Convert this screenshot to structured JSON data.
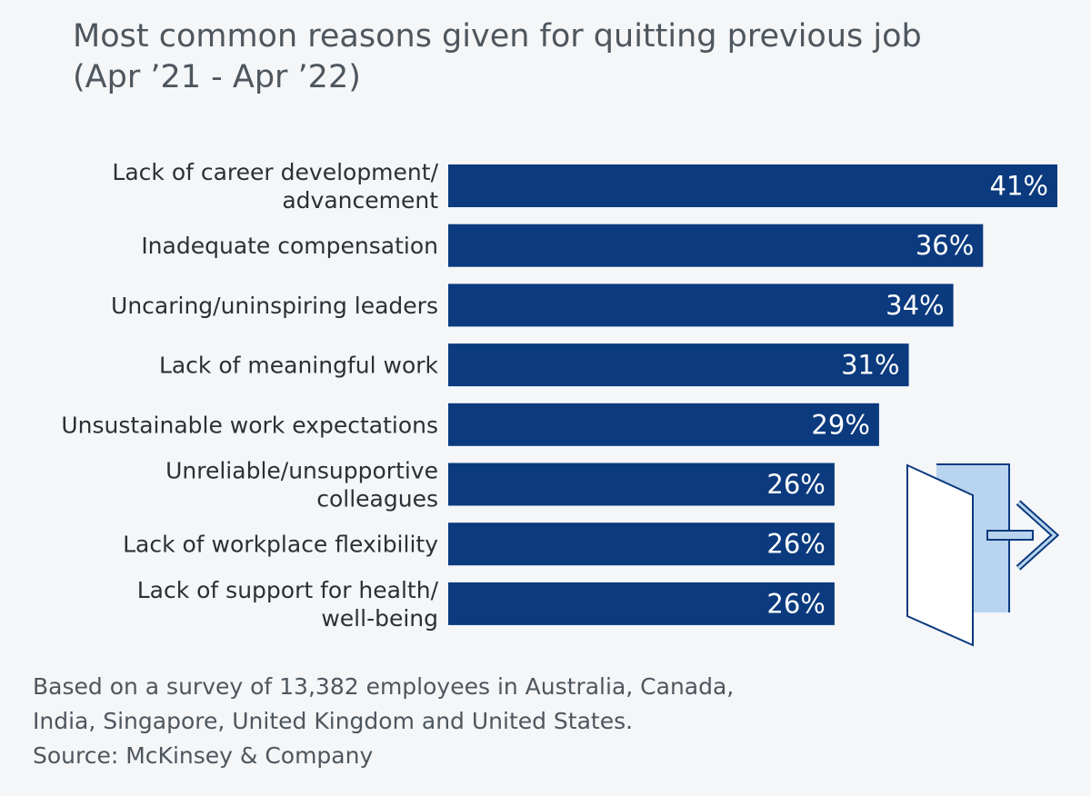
{
  "title_lines": [
    "Most common reasons given for quitting previous job",
    "(Apr ’21 - Apr ’22)"
  ],
  "chart_data": {
    "type": "bar",
    "orientation": "horizontal",
    "categories": [
      [
        "Lack of career development/",
        "advancement"
      ],
      [
        "Inadequate compensation"
      ],
      [
        "Uncaring/uninspiring leaders"
      ],
      [
        "Lack of meaningful work"
      ],
      [
        "Unsustainable work expectations"
      ],
      [
        "Unreliable/unsupportive",
        "colleagues"
      ],
      [
        "Lack of workplace flexibility"
      ],
      [
        "Lack of support for health/",
        "well-being"
      ]
    ],
    "values": [
      41,
      36,
      34,
      31,
      29,
      26,
      26,
      26
    ],
    "value_labels": [
      "41%",
      "36%",
      "34%",
      "31%",
      "29%",
      "26%",
      "26%",
      "26%"
    ],
    "unit": "%",
    "xlim": [
      0,
      41
    ],
    "grid": false,
    "legend": "none",
    "bar_color": "#0b3a7e"
  },
  "icon": "exit-door-arrow-icon",
  "footer": {
    "note_lines": [
      "Based on a survey of 13,382 employees in Australia, Canada,",
      "India, Singapore, United Kingdom and United States."
    ],
    "source": "Source: McKinsey & Company"
  }
}
